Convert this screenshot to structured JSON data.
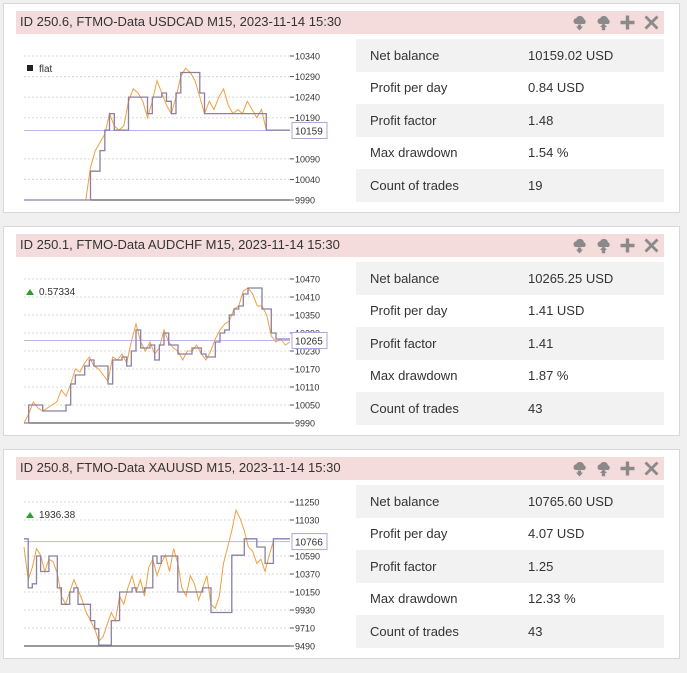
{
  "panels": [
    {
      "title": "ID 250.6, FTMO-Data USDCAD M15, 2023-11-14 15:30",
      "stats": [
        {
          "label": "Net balance",
          "value": "10159.02 USD"
        },
        {
          "label": "Profit per day",
          "value": "0.84 USD"
        },
        {
          "label": "Profit factor",
          "value": "1.48"
        },
        {
          "label": "Max drawdown",
          "value": "1.54 %"
        },
        {
          "label": "Count of trades",
          "value": "19"
        }
      ]
    },
    {
      "title": "ID 250.1, FTMO-Data AUDCHF M15, 2023-11-14 15:30",
      "stats": [
        {
          "label": "Net balance",
          "value": "10265.25 USD"
        },
        {
          "label": "Profit per day",
          "value": "1.41 USD"
        },
        {
          "label": "Profit factor",
          "value": "1.41"
        },
        {
          "label": "Max drawdown",
          "value": "1.87 %"
        },
        {
          "label": "Count of trades",
          "value": "43"
        }
      ]
    },
    {
      "title": "ID 250.8, FTMO-Data XAUUSD M15, 2023-11-14 15:30",
      "stats": [
        {
          "label": "Net balance",
          "value": "10765.60 USD"
        },
        {
          "label": "Profit per day",
          "value": "4.07 USD"
        },
        {
          "label": "Profit factor",
          "value": "1.25"
        },
        {
          "label": "Max drawdown",
          "value": "12.33 %"
        },
        {
          "label": "Count of trades",
          "value": "43"
        }
      ]
    }
  ],
  "icons": [
    "cloud-download-icon",
    "cloud-upload-icon",
    "plus-icon",
    "close-icon"
  ],
  "colors": {
    "header_bg": "#f5dcdc",
    "equity_line": "#f0a040",
    "balance_line": "#8c80a0",
    "current_line": "#b8b8e8",
    "marker_up": "#2e9e2e",
    "marker_flat": "#222222",
    "row_shade": "#f2f2f2"
  },
  "chart_data": [
    {
      "type": "line",
      "indicator": {
        "text": "flat",
        "marker": "flat"
      },
      "ylim": [
        9990,
        10340
      ],
      "ticks": [
        10340,
        10290,
        10240,
        10190,
        10090,
        10040,
        9990
      ],
      "current_value": 10159,
      "current_label": "10159",
      "series": [
        {
          "role": "balance",
          "x": [
            0,
            3,
            13,
            14,
            16,
            17,
            18,
            19,
            21,
            22,
            25,
            26,
            27,
            29,
            30,
            31,
            32,
            33,
            36,
            37,
            38,
            40,
            42,
            48,
            51,
            56
          ],
          "y": [
            9990,
            9990,
            9990,
            10060,
            10110,
            10160,
            10200,
            10160,
            10160,
            10240,
            10240,
            10200,
            10240,
            10250,
            10230,
            10200,
            10250,
            10300,
            10300,
            10250,
            10200,
            10200,
            10200,
            10200,
            10160,
            10160
          ]
        },
        {
          "role": "equity",
          "x": [
            13,
            14,
            15,
            16,
            17,
            18,
            19,
            20,
            21,
            22,
            23,
            24,
            25,
            26,
            27,
            28,
            29,
            30,
            31,
            32,
            33,
            34,
            35,
            36,
            37,
            38,
            39,
            40,
            41,
            42,
            43,
            44,
            45,
            46,
            47,
            48,
            49,
            50,
            51
          ],
          "y": [
            9990,
            10070,
            10110,
            10130,
            10150,
            10200,
            10170,
            10160,
            10170,
            10230,
            10260,
            10250,
            10230,
            10190,
            10230,
            10280,
            10250,
            10220,
            10200,
            10240,
            10290,
            10310,
            10300,
            10280,
            10240,
            10200,
            10230,
            10210,
            10240,
            10260,
            10220,
            10200,
            10210,
            10200,
            10230,
            10210,
            10190,
            10210,
            10160
          ]
        }
      ]
    },
    {
      "type": "line",
      "indicator": {
        "text": "0.57334",
        "marker": "up"
      },
      "ylim": [
        9990,
        10470
      ],
      "ticks": [
        10470,
        10410,
        10350,
        10290,
        10230,
        10170,
        10110,
        10050,
        9990
      ],
      "current_value": 10265,
      "current_label": "10265",
      "series": [
        {
          "role": "balance",
          "x": [
            0,
            1,
            2,
            4,
            5,
            9,
            10,
            11,
            13,
            14,
            15,
            16,
            18,
            19,
            21,
            22,
            23,
            24,
            25,
            27,
            28,
            29,
            30,
            31,
            32,
            33,
            35,
            36,
            38,
            39,
            40,
            41,
            42,
            43,
            44,
            45,
            46,
            47,
            48,
            49,
            51,
            53,
            54,
            57
          ],
          "y": [
            9990,
            10050,
            10050,
            10030,
            10030,
            10050,
            10120,
            10150,
            10180,
            10200,
            10180,
            10180,
            10120,
            10200,
            10210,
            10180,
            10230,
            10300,
            10240,
            10250,
            10200,
            10250,
            10290,
            10250,
            10250,
            10220,
            10220,
            10240,
            10220,
            10210,
            10210,
            10260,
            10290,
            10300,
            10350,
            10370,
            10380,
            10420,
            10440,
            10440,
            10370,
            10290,
            10270,
            10270
          ]
        },
        {
          "role": "equity",
          "x": [
            0,
            1,
            2,
            3,
            4,
            5,
            6,
            7,
            8,
            9,
            10,
            11,
            12,
            13,
            14,
            15,
            16,
            17,
            18,
            19,
            20,
            21,
            22,
            23,
            24,
            25,
            26,
            27,
            28,
            29,
            30,
            31,
            32,
            33,
            34,
            35,
            36,
            37,
            38,
            39,
            40,
            41,
            42,
            43,
            44,
            45,
            46,
            47,
            48,
            49,
            50,
            51,
            52,
            53,
            54,
            55,
            56,
            57
          ],
          "y": [
            9990,
            10020,
            10060,
            10040,
            10030,
            10040,
            10050,
            10060,
            10100,
            10080,
            10120,
            10170,
            10160,
            10190,
            10210,
            10180,
            10170,
            10150,
            10130,
            10210,
            10200,
            10220,
            10190,
            10260,
            10320,
            10260,
            10230,
            10260,
            10220,
            10240,
            10300,
            10260,
            10240,
            10230,
            10200,
            10230,
            10230,
            10250,
            10220,
            10200,
            10230,
            10270,
            10300,
            10320,
            10330,
            10370,
            10380,
            10430,
            10440,
            10420,
            10380,
            10380,
            10350,
            10280,
            10260,
            10270,
            10250,
            10260
          ]
        }
      ]
    },
    {
      "type": "line",
      "indicator": {
        "text": "1936.38",
        "marker": "up"
      },
      "ylim": [
        9490,
        11250
      ],
      "ticks": [
        11250,
        11030,
        10590,
        10370,
        10150,
        9930,
        9710,
        9490
      ],
      "current_value": 10766,
      "current_label": "10766",
      "series": [
        {
          "role": "balance",
          "x": [
            0,
            1,
            2,
            3,
            4,
            6,
            8,
            9,
            11,
            12,
            13,
            16,
            17,
            18,
            21,
            23,
            26,
            27,
            29,
            31,
            32,
            33,
            35,
            37,
            40,
            43,
            45,
            48,
            50,
            53,
            54,
            56,
            58,
            60,
            62,
            64
          ],
          "y": [
            10800,
            10200,
            10250,
            10590,
            10400,
            10590,
            10200,
            10000,
            10150,
            10200,
            10000,
            9800,
            9700,
            9500,
            9800,
            10150,
            10200,
            10150,
            10200,
            10590,
            10500,
            10590,
            10590,
            10150,
            10150,
            10200,
            9900,
            9900,
            10600,
            10800,
            10800,
            10700,
            10500,
            10800,
            10800,
            10800
          ]
        },
        {
          "role": "equity",
          "x": [
            0,
            1,
            2,
            3,
            4,
            5,
            6,
            7,
            8,
            9,
            10,
            11,
            12,
            13,
            14,
            15,
            16,
            17,
            18,
            19,
            20,
            21,
            22,
            23,
            24,
            25,
            26,
            27,
            28,
            29,
            30,
            31,
            32,
            33,
            34,
            35,
            36,
            37,
            38,
            39,
            40,
            41,
            42,
            43,
            44,
            45,
            46,
            47,
            48,
            49,
            50,
            51,
            52,
            53,
            54,
            55,
            56,
            57,
            58,
            59,
            60
          ],
          "y": [
            10700,
            10300,
            10450,
            10680,
            10600,
            10400,
            10550,
            10520,
            10380,
            10100,
            10000,
            10150,
            10300,
            10180,
            10050,
            9900,
            9800,
            9700,
            9550,
            9600,
            9750,
            9900,
            9800,
            10100,
            10000,
            10200,
            10350,
            10150,
            10300,
            10100,
            10450,
            10550,
            10350,
            10500,
            10600,
            10400,
            10680,
            10500,
            10200,
            10100,
            10350,
            10250,
            10050,
            10200,
            10350,
            10000,
            9950,
            10100,
            10500,
            10700,
            10900,
            11150,
            11050,
            10900,
            10700,
            10650,
            10500,
            10550,
            10400,
            10600,
            10770
          ]
        }
      ]
    }
  ]
}
